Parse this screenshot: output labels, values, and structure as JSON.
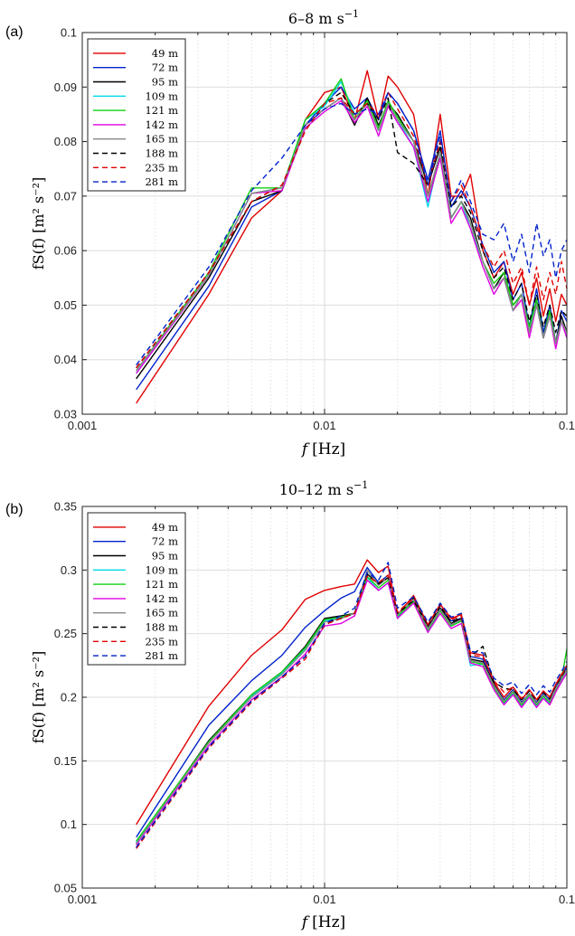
{
  "chart_data": [
    {
      "type": "line",
      "panel_label": "(a)",
      "title": "6–8 m s",
      "title_sup": "−1",
      "xlabel_var": "f",
      "xlabel_unit": "[Hz]",
      "ylabel": "fS(f)  [m² s⁻²]",
      "xscale": "log",
      "xlim": [
        0.001,
        0.1
      ],
      "ylim": [
        0.03,
        0.1
      ],
      "xticks": [
        0.001,
        0.01,
        0.1
      ],
      "xtick_labels": [
        "0.001",
        "0.01",
        "0.1"
      ],
      "yticks": [
        0.03,
        0.04,
        0.05,
        0.06,
        0.07,
        0.08,
        0.09,
        0.1
      ],
      "ytick_labels": [
        "0.03",
        "0.04",
        "0.05",
        "0.06",
        "0.07",
        "0.08",
        "0.09",
        "0.1"
      ],
      "grid": true,
      "legend_position": "top-left",
      "x": [
        0.00167,
        0.00333,
        0.005,
        0.00667,
        0.00833,
        0.01,
        0.0117,
        0.0133,
        0.015,
        0.0167,
        0.0183,
        0.02,
        0.0233,
        0.0267,
        0.03,
        0.0333,
        0.0367,
        0.04,
        0.045,
        0.05,
        0.055,
        0.06,
        0.065,
        0.07,
        0.075,
        0.08,
        0.085,
        0.09,
        0.095,
        0.1
      ],
      "series": [
        {
          "name": "49 m",
          "color": "#e00000",
          "dash": false,
          "values": [
            0.032,
            0.052,
            0.066,
            0.071,
            0.084,
            0.089,
            0.09,
            0.084,
            0.093,
            0.084,
            0.092,
            0.09,
            0.085,
            0.07,
            0.085,
            0.07,
            0.07,
            0.074,
            0.06,
            0.055,
            0.058,
            0.052,
            0.056,
            0.05,
            0.055,
            0.048,
            0.053,
            0.047,
            0.052,
            0.05
          ]
        },
        {
          "name": "72 m",
          "color": "#0022cc",
          "dash": false,
          "values": [
            0.0345,
            0.0535,
            0.068,
            0.071,
            0.083,
            0.087,
            0.09,
            0.086,
            0.088,
            0.084,
            0.089,
            0.087,
            0.082,
            0.073,
            0.082,
            0.068,
            0.071,
            0.068,
            0.061,
            0.056,
            0.058,
            0.051,
            0.054,
            0.046,
            0.053,
            0.045,
            0.05,
            0.043,
            0.049,
            0.047
          ]
        },
        {
          "name": "95 m",
          "color": "#000000",
          "dash": false,
          "values": [
            0.0365,
            0.055,
            0.069,
            0.071,
            0.083,
            0.086,
            0.088,
            0.083,
            0.088,
            0.083,
            0.087,
            0.085,
            0.08,
            0.072,
            0.079,
            0.066,
            0.069,
            0.066,
            0.058,
            0.053,
            0.056,
            0.05,
            0.052,
            0.045,
            0.051,
            0.044,
            0.049,
            0.043,
            0.048,
            0.045
          ]
        },
        {
          "name": "109 m",
          "color": "#00d8e8",
          "dash": false,
          "values": [
            0.0375,
            0.0555,
            0.0705,
            0.0715,
            0.084,
            0.0865,
            0.091,
            0.085,
            0.087,
            0.082,
            0.087,
            0.084,
            0.079,
            0.068,
            0.078,
            0.066,
            0.069,
            0.064,
            0.058,
            0.053,
            0.055,
            0.049,
            0.052,
            0.046,
            0.05,
            0.044,
            0.048,
            0.043,
            0.047,
            0.044
          ]
        },
        {
          "name": "121 m",
          "color": "#10d010",
          "dash": false,
          "values": [
            0.038,
            0.056,
            0.0715,
            0.0715,
            0.084,
            0.087,
            0.0915,
            0.084,
            0.0875,
            0.0825,
            0.0875,
            0.0845,
            0.08,
            0.07,
            0.077,
            0.066,
            0.069,
            0.065,
            0.058,
            0.054,
            0.056,
            0.05,
            0.052,
            0.046,
            0.051,
            0.044,
            0.049,
            0.043,
            0.047,
            0.045
          ]
        },
        {
          "name": "142 m",
          "color": "#e000e0",
          "dash": false,
          "values": [
            0.0375,
            0.0555,
            0.0705,
            0.071,
            0.0825,
            0.0855,
            0.0875,
            0.0835,
            0.0865,
            0.081,
            0.0865,
            0.0835,
            0.079,
            0.069,
            0.077,
            0.065,
            0.068,
            0.064,
            0.057,
            0.052,
            0.055,
            0.049,
            0.051,
            0.044,
            0.05,
            0.044,
            0.048,
            0.042,
            0.047,
            0.044
          ]
        },
        {
          "name": "165 m",
          "color": "#888888",
          "dash": false,
          "values": [
            0.038,
            0.0555,
            0.0705,
            0.0715,
            0.083,
            0.086,
            0.088,
            0.084,
            0.087,
            0.082,
            0.087,
            0.084,
            0.08,
            0.07,
            0.078,
            0.066,
            0.069,
            0.065,
            0.058,
            0.053,
            0.055,
            0.049,
            0.052,
            0.045,
            0.05,
            0.044,
            0.048,
            0.043,
            0.047,
            0.045
          ]
        },
        {
          "name": "188 m",
          "color": "#000000",
          "dash": true,
          "values": [
            0.0385,
            0.056,
            0.069,
            0.072,
            0.082,
            0.087,
            0.089,
            0.085,
            0.087,
            0.084,
            0.088,
            0.078,
            0.076,
            0.072,
            0.08,
            0.068,
            0.07,
            0.067,
            0.06,
            0.055,
            0.057,
            0.051,
            0.054,
            0.047,
            0.052,
            0.046,
            0.05,
            0.045,
            0.049,
            0.048
          ]
        },
        {
          "name": "235 m",
          "color": "#e00000",
          "dash": true,
          "values": [
            0.0385,
            0.056,
            0.069,
            0.072,
            0.082,
            0.087,
            0.088,
            0.085,
            0.087,
            0.085,
            0.089,
            0.086,
            0.081,
            0.072,
            0.08,
            0.069,
            0.072,
            0.068,
            0.061,
            0.057,
            0.06,
            0.054,
            0.057,
            0.05,
            0.057,
            0.051,
            0.056,
            0.052,
            0.058,
            0.053
          ]
        },
        {
          "name": "281 m",
          "color": "#0022cc",
          "dash": true,
          "values": [
            0.039,
            0.057,
            0.071,
            0.077,
            0.083,
            0.086,
            0.087,
            0.085,
            0.086,
            0.085,
            0.089,
            0.087,
            0.082,
            0.072,
            0.081,
            0.069,
            0.073,
            0.069,
            0.063,
            0.062,
            0.065,
            0.058,
            0.063,
            0.056,
            0.065,
            0.059,
            0.062,
            0.055,
            0.06,
            0.062
          ]
        }
      ]
    },
    {
      "type": "line",
      "panel_label": "(b)",
      "title": "10–12 m s",
      "title_sup": "−1",
      "xlabel_var": "f",
      "xlabel_unit": "[Hz]",
      "ylabel": "fS(f)  [m² s⁻²]",
      "xscale": "log",
      "xlim": [
        0.001,
        0.1
      ],
      "ylim": [
        0.05,
        0.35
      ],
      "xticks": [
        0.001,
        0.01,
        0.1
      ],
      "xtick_labels": [
        "0.001",
        "0.01",
        "0.1"
      ],
      "yticks": [
        0.05,
        0.1,
        0.15,
        0.2,
        0.25,
        0.3,
        0.35
      ],
      "ytick_labels": [
        "0.05",
        "0.1",
        "0.15",
        "0.2",
        "0.25",
        "0.3",
        "0.35"
      ],
      "grid": true,
      "legend_position": "top-left",
      "x": [
        0.00167,
        0.00333,
        0.005,
        0.00667,
        0.00833,
        0.01,
        0.0117,
        0.0133,
        0.015,
        0.0167,
        0.0183,
        0.02,
        0.0233,
        0.0267,
        0.03,
        0.0333,
        0.0367,
        0.04,
        0.045,
        0.05,
        0.055,
        0.06,
        0.065,
        0.07,
        0.075,
        0.08,
        0.085,
        0.09,
        0.095,
        0.1
      ],
      "series": [
        {
          "name": "49 m",
          "color": "#e00000",
          "dash": false,
          "values": [
            0.1,
            0.193,
            0.233,
            0.253,
            0.277,
            0.284,
            0.287,
            0.289,
            0.308,
            0.298,
            0.303,
            0.265,
            0.28,
            0.257,
            0.273,
            0.262,
            0.265,
            0.235,
            0.233,
            0.212,
            0.2,
            0.208,
            0.198,
            0.206,
            0.198,
            0.205,
            0.2,
            0.21,
            0.218,
            0.225
          ]
        },
        {
          "name": "72 m",
          "color": "#0022cc",
          "dash": false,
          "values": [
            0.09,
            0.178,
            0.213,
            0.233,
            0.255,
            0.268,
            0.278,
            0.283,
            0.302,
            0.29,
            0.296,
            0.262,
            0.278,
            0.255,
            0.27,
            0.26,
            0.262,
            0.232,
            0.23,
            0.21,
            0.198,
            0.206,
            0.196,
            0.203,
            0.196,
            0.203,
            0.198,
            0.208,
            0.216,
            0.224
          ]
        },
        {
          "name": "95 m",
          "color": "#000000",
          "dash": false,
          "values": [
            0.085,
            0.166,
            0.202,
            0.22,
            0.24,
            0.262,
            0.264,
            0.266,
            0.297,
            0.289,
            0.294,
            0.263,
            0.278,
            0.255,
            0.27,
            0.258,
            0.262,
            0.23,
            0.228,
            0.21,
            0.197,
            0.205,
            0.195,
            0.203,
            0.195,
            0.202,
            0.197,
            0.207,
            0.214,
            0.222
          ]
        },
        {
          "name": "109 m",
          "color": "#00d8e8",
          "dash": false,
          "values": [
            0.086,
            0.165,
            0.201,
            0.219,
            0.238,
            0.26,
            0.262,
            0.266,
            0.294,
            0.284,
            0.29,
            0.263,
            0.276,
            0.252,
            0.268,
            0.256,
            0.26,
            0.225,
            0.226,
            0.208,
            0.195,
            0.203,
            0.193,
            0.201,
            0.193,
            0.2,
            0.195,
            0.205,
            0.212,
            0.22
          ]
        },
        {
          "name": "121 m",
          "color": "#10d010",
          "dash": false,
          "values": [
            0.087,
            0.165,
            0.202,
            0.22,
            0.239,
            0.261,
            0.263,
            0.266,
            0.295,
            0.286,
            0.292,
            0.264,
            0.275,
            0.253,
            0.268,
            0.256,
            0.26,
            0.228,
            0.226,
            0.208,
            0.196,
            0.204,
            0.194,
            0.202,
            0.194,
            0.201,
            0.196,
            0.206,
            0.214,
            0.238
          ]
        },
        {
          "name": "142 m",
          "color": "#e000e0",
          "dash": false,
          "values": [
            0.084,
            0.162,
            0.198,
            0.216,
            0.234,
            0.256,
            0.258,
            0.264,
            0.292,
            0.284,
            0.29,
            0.262,
            0.274,
            0.251,
            0.266,
            0.254,
            0.258,
            0.227,
            0.224,
            0.206,
            0.194,
            0.202,
            0.192,
            0.2,
            0.192,
            0.199,
            0.194,
            0.204,
            0.212,
            0.219
          ]
        },
        {
          "name": "165 m",
          "color": "#888888",
          "dash": false,
          "values": [
            0.085,
            0.164,
            0.2,
            0.218,
            0.237,
            0.259,
            0.262,
            0.266,
            0.3,
            0.288,
            0.294,
            0.265,
            0.277,
            0.254,
            0.269,
            0.257,
            0.261,
            0.229,
            0.227,
            0.209,
            0.197,
            0.205,
            0.195,
            0.203,
            0.195,
            0.202,
            0.197,
            0.207,
            0.214,
            0.222
          ]
        },
        {
          "name": "188 m",
          "color": "#000000",
          "dash": true,
          "values": [
            0.082,
            0.161,
            0.197,
            0.216,
            0.232,
            0.258,
            0.262,
            0.266,
            0.296,
            0.289,
            0.294,
            0.266,
            0.276,
            0.256,
            0.272,
            0.259,
            0.263,
            0.232,
            0.24,
            0.212,
            0.207,
            0.206,
            0.198,
            0.205,
            0.197,
            0.204,
            0.199,
            0.209,
            0.216,
            0.224
          ]
        },
        {
          "name": "235 m",
          "color": "#e00000",
          "dash": true,
          "values": [
            0.081,
            0.16,
            0.196,
            0.215,
            0.23,
            0.257,
            0.262,
            0.266,
            0.295,
            0.29,
            0.296,
            0.267,
            0.278,
            0.257,
            0.273,
            0.261,
            0.264,
            0.233,
            0.232,
            0.213,
            0.204,
            0.208,
            0.199,
            0.206,
            0.198,
            0.205,
            0.2,
            0.21,
            0.217,
            0.225
          ]
        },
        {
          "name": "281 m",
          "color": "#0022cc",
          "dash": true,
          "values": [
            0.082,
            0.161,
            0.197,
            0.216,
            0.232,
            0.258,
            0.264,
            0.27,
            0.298,
            0.292,
            0.306,
            0.27,
            0.279,
            0.259,
            0.274,
            0.263,
            0.266,
            0.236,
            0.235,
            0.215,
            0.209,
            0.212,
            0.203,
            0.21,
            0.202,
            0.209,
            0.204,
            0.213,
            0.22,
            0.228
          ]
        }
      ]
    }
  ]
}
